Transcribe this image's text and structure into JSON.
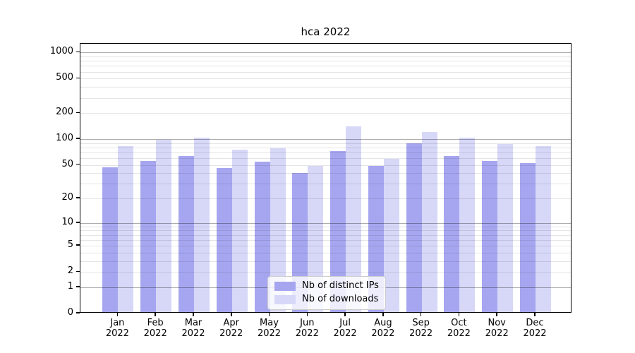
{
  "figure": {
    "title": "hca 2022"
  },
  "chart_data": {
    "type": "bar",
    "title": "hca 2022",
    "categories": [
      "Jan",
      "Feb",
      "Mar",
      "Apr",
      "May",
      "Jun",
      "Jul",
      "Aug",
      "Sep",
      "Oct",
      "Nov",
      "Dec"
    ],
    "x_year": "2022",
    "series": [
      {
        "key": "distinct-ips",
        "name": "Nb of distinct IPs",
        "color": "#a6a6f0",
        "values": [
          45,
          54,
          61,
          44,
          53,
          39,
          70,
          47,
          86,
          61,
          54,
          51
        ]
      },
      {
        "key": "downloads",
        "name": "Nb of downloads",
        "color": "#d7d7f8",
        "values": [
          80,
          94,
          100,
          72,
          75,
          47,
          136,
          57,
          116,
          100,
          85,
          80
        ]
      }
    ],
    "y_ticks": [
      0,
      1,
      2,
      5,
      10,
      20,
      50,
      100,
      200,
      500,
      1000
    ],
    "y_scale": "log1p",
    "ylim": [
      0,
      1260
    ],
    "grid": true,
    "legend_position": "lower center"
  }
}
